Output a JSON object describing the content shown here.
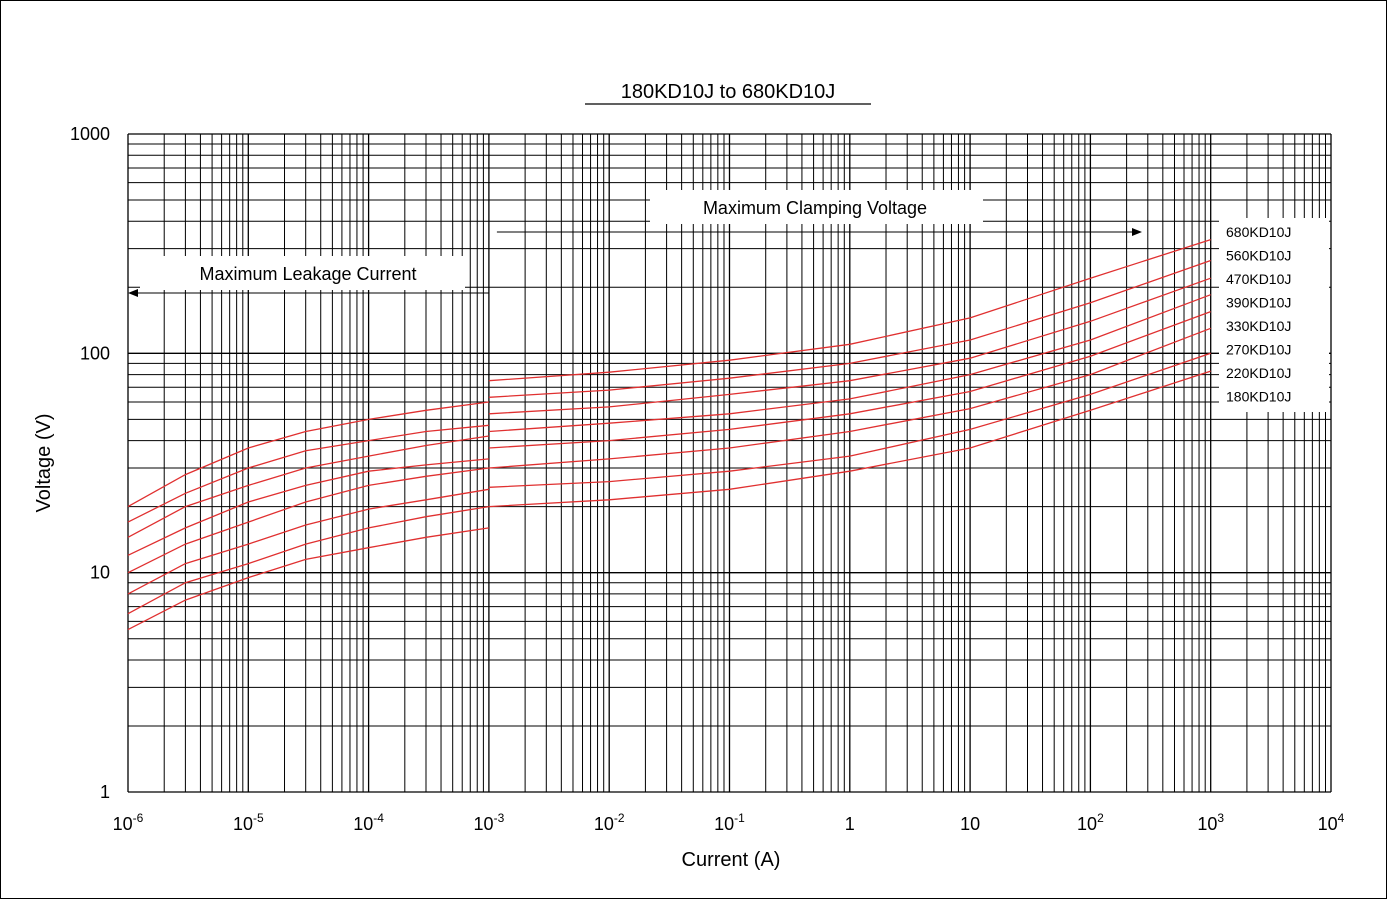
{
  "chart_data": {
    "type": "line",
    "title": "180KD10J to 680KD10J",
    "xlabel": "Current (A)",
    "ylabel": "Voltage (V)",
    "xscale": "log",
    "yscale": "log",
    "xlim": [
      1e-06,
      10000
    ],
    "ylim": [
      1,
      1000
    ],
    "grid": true,
    "x_ticks": [
      {
        "base": "10",
        "exp": "-6"
      },
      {
        "base": "10",
        "exp": "-5"
      },
      {
        "base": "10",
        "exp": "-4"
      },
      {
        "base": "10",
        "exp": "-3"
      },
      {
        "base": "10",
        "exp": "-2"
      },
      {
        "base": "10",
        "exp": "-1"
      },
      {
        "base": "1",
        "exp": ""
      },
      {
        "base": "10",
        "exp": ""
      },
      {
        "base": "10",
        "exp": "2"
      },
      {
        "base": "10",
        "exp": "3"
      },
      {
        "base": "10",
        "exp": "4"
      }
    ],
    "y_ticks": [
      "1",
      "10",
      "100",
      "1000"
    ],
    "annotations": {
      "leakage": "Maximum Leakage Current",
      "clamping": "Maximum Clamping Voltage"
    },
    "legend_placement": "right",
    "line_color": "#e03030",
    "series": [
      {
        "name": "680KD10J",
        "leakage": {
          "x": [
            1e-06,
            3e-06,
            1e-05,
            3e-05,
            0.0001,
            0.0003,
            0.001
          ],
          "y": [
            20,
            28,
            37,
            44,
            50,
            55,
            60
          ]
        },
        "clamping": {
          "x": [
            0.001,
            0.01,
            0.1,
            1,
            10,
            100,
            1000
          ],
          "y": [
            75,
            82,
            93,
            110,
            145,
            220,
            330
          ]
        }
      },
      {
        "name": "560KD10J",
        "leakage": {
          "x": [
            1e-06,
            3e-06,
            1e-05,
            3e-05,
            0.0001,
            0.0003,
            0.001
          ],
          "y": [
            17,
            23,
            30,
            36,
            40,
            44,
            47
          ]
        },
        "clamping": {
          "x": [
            0.001,
            0.01,
            0.1,
            1,
            10,
            100,
            1000
          ],
          "y": [
            63,
            68,
            77,
            90,
            115,
            170,
            265
          ]
        }
      },
      {
        "name": "470KD10J",
        "leakage": {
          "x": [
            1e-06,
            3e-06,
            1e-05,
            3e-05,
            0.0001,
            0.0003,
            0.001
          ],
          "y": [
            14.5,
            20,
            25,
            30,
            34,
            38,
            42
          ]
        },
        "clamping": {
          "x": [
            0.001,
            0.01,
            0.1,
            1,
            10,
            100,
            1000
          ],
          "y": [
            53,
            57,
            65,
            75,
            95,
            140,
            220
          ]
        }
      },
      {
        "name": "390KD10J",
        "leakage": {
          "x": [
            1e-06,
            3e-06,
            1e-05,
            3e-05,
            0.0001,
            0.0003,
            0.001
          ],
          "y": [
            12,
            16,
            21,
            25,
            29,
            31,
            33
          ]
        },
        "clamping": {
          "x": [
            0.001,
            0.01,
            0.1,
            1,
            10,
            100,
            1000
          ],
          "y": [
            44,
            48,
            53,
            62,
            80,
            115,
            185
          ]
        }
      },
      {
        "name": "330KD10J",
        "leakage": {
          "x": [
            1e-06,
            3e-06,
            1e-05,
            3e-05,
            0.0001,
            0.0003,
            0.001
          ],
          "y": [
            10,
            13.5,
            17,
            21,
            25,
            27.5,
            30
          ]
        },
        "clamping": {
          "x": [
            0.001,
            0.01,
            0.1,
            1,
            10,
            100,
            1000
          ],
          "y": [
            37,
            40,
            45,
            53,
            67,
            97,
            155
          ]
        }
      },
      {
        "name": "270KD10J",
        "leakage": {
          "x": [
            1e-06,
            3e-06,
            1e-05,
            3e-05,
            0.0001,
            0.0003,
            0.001
          ],
          "y": [
            8,
            11,
            13.5,
            16.5,
            19.5,
            21.5,
            24
          ]
        },
        "clamping": {
          "x": [
            0.001,
            0.01,
            0.1,
            1,
            10,
            100,
            1000
          ],
          "y": [
            30,
            33,
            37,
            44,
            56,
            80,
            130
          ]
        }
      },
      {
        "name": "220KD10J",
        "leakage": {
          "x": [
            1e-06,
            3e-06,
            1e-05,
            3e-05,
            0.0001,
            0.0003,
            0.001
          ],
          "y": [
            6.5,
            9,
            11,
            13.5,
            16,
            18,
            20
          ]
        },
        "clamping": {
          "x": [
            0.001,
            0.01,
            0.1,
            1,
            10,
            100,
            1000
          ],
          "y": [
            24.5,
            26,
            29,
            34,
            45,
            65,
            100
          ]
        }
      },
      {
        "name": "180KD10J",
        "leakage": {
          "x": [
            1e-06,
            3e-06,
            1e-05,
            3e-05,
            0.0001,
            0.0003,
            0.001
          ],
          "y": [
            5.5,
            7.5,
            9.5,
            11.5,
            13,
            14.5,
            16
          ]
        },
        "clamping": {
          "x": [
            0.001,
            0.01,
            0.1,
            1,
            10,
            100,
            1000
          ],
          "y": [
            20,
            21.5,
            24,
            29,
            37,
            55,
            83
          ]
        }
      }
    ]
  }
}
